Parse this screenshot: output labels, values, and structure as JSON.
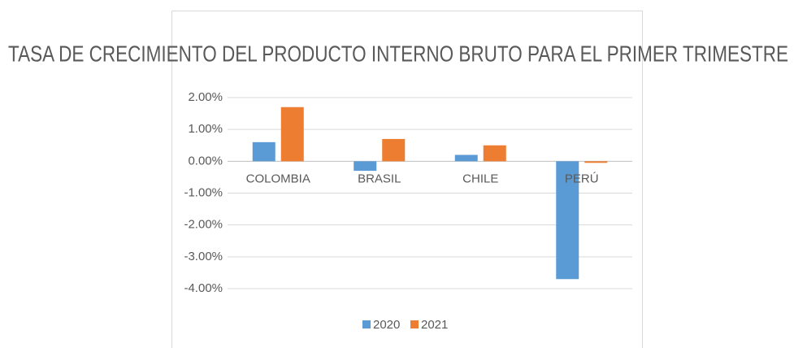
{
  "chart_data": {
    "type": "bar",
    "title": "TASA DE CRECIMIENTO DEL PRODUCTO INTERNO BRUTO PARA EL PRIMER TRIMESTRE",
    "categories": [
      "COLOMBIA",
      "BRASIL",
      "CHILE",
      "PERÚ"
    ],
    "series": [
      {
        "name": "2020",
        "color": "#5b9bd5",
        "values": [
          0.6,
          -0.3,
          0.2,
          -3.7
        ]
      },
      {
        "name": "2021",
        "color": "#ed7d31",
        "values": [
          1.7,
          0.7,
          0.5,
          -0.05
        ]
      }
    ],
    "ylim": [
      -4,
      2
    ],
    "yticks": [
      {
        "value": -4,
        "label": "-4.00%"
      },
      {
        "value": -3,
        "label": "-3.00%"
      },
      {
        "value": -2,
        "label": "-2.00%"
      },
      {
        "value": -1,
        "label": "-1.00%"
      },
      {
        "value": 0,
        "label": "0.00%"
      },
      {
        "value": 1,
        "label": "1.00%"
      },
      {
        "value": 2,
        "label": "2.00%"
      }
    ],
    "grid": true,
    "legend": "bottom"
  }
}
